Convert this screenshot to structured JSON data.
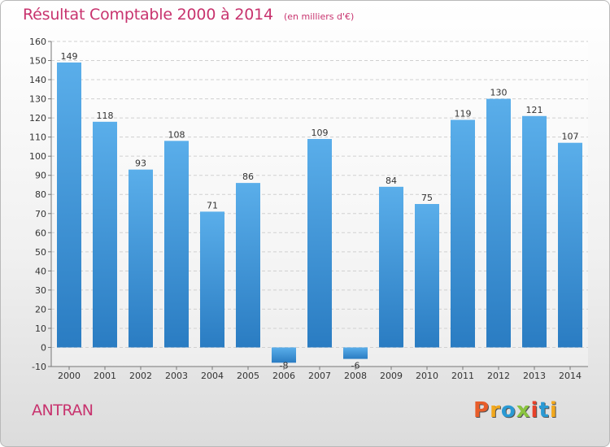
{
  "header": {
    "title": "Résultat Comptable 2000 à 2014",
    "subtitle": "(en milliers d'€)"
  },
  "footer": {
    "commune": "ANTRAN",
    "brand": "Proxiti"
  },
  "colors": {
    "title": "#c8336e",
    "bar_light": "#5aaeea",
    "bar_dark": "#2a7cc2",
    "grid": "#d0d0d0",
    "axis_text": "#333333",
    "brand_letters": [
      "#e85d2a",
      "#f2a81d",
      "#2a9ad4",
      "#8ac43f",
      "#e8412a",
      "#2a9ad4",
      "#f2a81d"
    ]
  },
  "chart_data": {
    "type": "bar",
    "title": "Résultat Comptable 2000 à 2014",
    "subtitle": "(en milliers d'€)",
    "categories": [
      "2000",
      "2001",
      "2002",
      "2003",
      "2004",
      "2005",
      "2006",
      "2007",
      "2008",
      "2009",
      "2010",
      "2011",
      "2012",
      "2013",
      "2014"
    ],
    "values": [
      149,
      118,
      93,
      108,
      71,
      86,
      -8,
      109,
      -6,
      84,
      75,
      119,
      130,
      121,
      107
    ],
    "data_labels": [
      "149",
      "118",
      "93",
      "108",
      "71",
      "86",
      "-8",
      "109",
      "-6",
      "84",
      "75",
      "119",
      "130",
      "121",
      "107"
    ],
    "yticks": [
      -10,
      0,
      10,
      20,
      30,
      40,
      50,
      60,
      70,
      80,
      90,
      100,
      110,
      120,
      130,
      140,
      150,
      160
    ],
    "ylim": [
      -10,
      160
    ],
    "xlabel": "",
    "ylabel": "",
    "grid": true,
    "legend": "none"
  }
}
